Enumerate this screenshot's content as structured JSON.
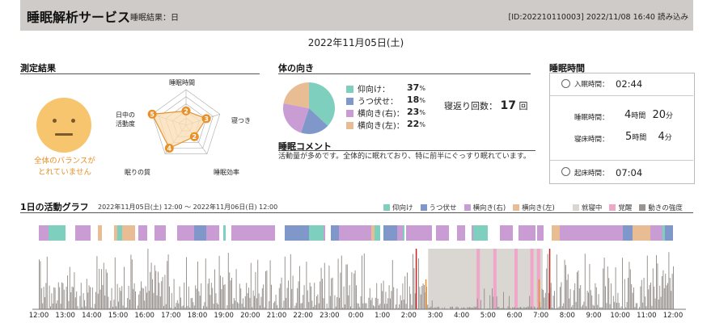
{
  "header": {
    "title": "睡眠解析サービス",
    "subtitle": "睡眠結果：日",
    "id_text": "[ID:202210110003]  2022/11/08 16:40 読み込み"
  },
  "date_title": "2022年11月05日(土)",
  "measurement": {
    "section_title": "測定結果",
    "face_text_line1": "全体のバランスが",
    "face_text_line2": "とれていません",
    "radar": {
      "axes": [
        {
          "label": "睡眠時間",
          "value": 2
        },
        {
          "label": "寝つき",
          "value": 3
        },
        {
          "label": "睡眠効率",
          "value": 2
        },
        {
          "label": "眠りの質",
          "value": 4
        },
        {
          "label_line1": "日中の",
          "label_line2": "活動度",
          "value": 5
        }
      ],
      "max": 5,
      "color": "#e8912a"
    }
  },
  "body_position": {
    "section_title": "体の向き",
    "items": [
      {
        "label": "仰向け：",
        "value": "37",
        "unit": "%",
        "color": "#7fcfbf"
      },
      {
        "label": "うつ伏せ：",
        "value": "18",
        "unit": "%",
        "color": "#7f97c9"
      },
      {
        "label": "横向き(右)：",
        "value": "23",
        "unit": "%",
        "color": "#c99cd3"
      },
      {
        "label": "横向き(左)：",
        "value": "22",
        "unit": "%",
        "color": "#e8bd93"
      }
    ],
    "turn_label": "寝返り回数：",
    "turn_value": "17",
    "turn_unit": "回"
  },
  "comment": {
    "section_title": "睡眠コメント",
    "text": "活動量が多めです。全体的に眠れており、特に前半にぐっすり眠れています。"
  },
  "sleep_time": {
    "section_title": "睡眠時間",
    "bed_label": "入眠時間：",
    "bed_value": "02:44",
    "sleep_label": "睡眠時間：",
    "sleep_hours": "4",
    "sleep_hours_unit": "時間",
    "sleep_minutes": "20",
    "sleep_minutes_unit": "分",
    "inbed_label": "寝床時間：",
    "inbed_hours": "5",
    "inbed_hours_unit": "時間",
    "inbed_minutes": "4",
    "inbed_minutes_unit": "分",
    "wake_label": "起床時間：",
    "wake_value": "07:04"
  },
  "activity_graph": {
    "section_title": "1日の活動グラフ",
    "range_text": "2022年11月05日(土) 12:00 ～ 2022年11月06日(日) 12:00",
    "legend": [
      {
        "label": "仰向け",
        "color": "#7fcfbf"
      },
      {
        "label": "うつ伏せ",
        "color": "#7f97c9"
      },
      {
        "label": "横向き(右)",
        "color": "#c99cd3"
      },
      {
        "label": "横向き(左)",
        "color": "#e8bd93"
      },
      {
        "label": "就寝中",
        "color": "#dad6d2"
      },
      {
        "label": "覚醒",
        "color": "#f0a6c8"
      },
      {
        "label": "動きの強度",
        "color": "#9a9490"
      }
    ],
    "x_ticks": [
      "12:00",
      "13:00",
      "14:00",
      "15:00",
      "16:00",
      "17:00",
      "18:00",
      "19:00",
      "20:00",
      "21:00",
      "22:00",
      "23:00",
      "0:00",
      "1:00",
      "2:00",
      "3:00",
      "4:00",
      "5:00",
      "6:00",
      "7:00",
      "8:00",
      "9:00",
      "10:00",
      "11:00",
      "12:00"
    ],
    "sleep_period": {
      "start": "02:44",
      "end": "07:04"
    },
    "markers_red": [
      "02:17",
      "07:20"
    ],
    "markers_orange": [
      "02:39",
      "06:56"
    ],
    "awake_bands": [
      "04:34",
      "05:12",
      "06:00",
      "06:36",
      "06:51"
    ]
  }
}
